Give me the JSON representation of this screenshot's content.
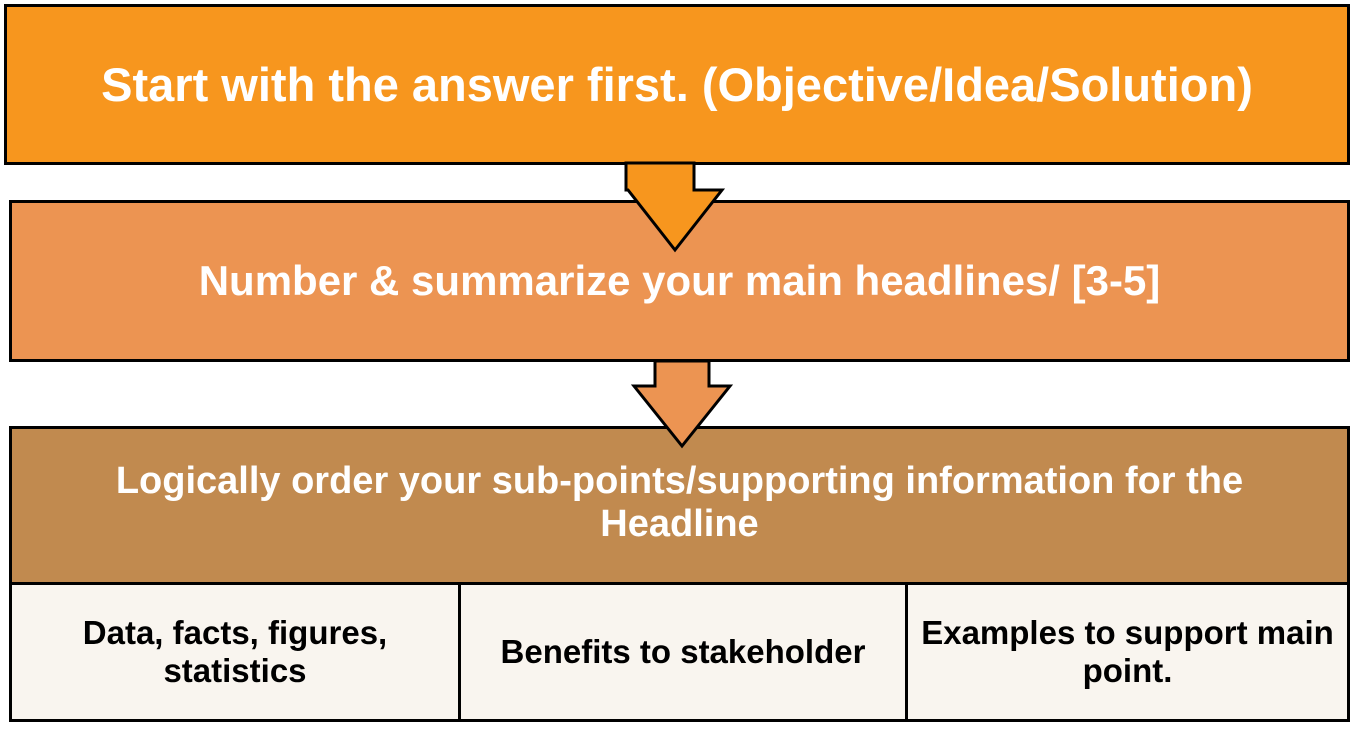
{
  "diagram": {
    "step1": {
      "label": "Start with the answer first. (Objective/Idea/Solution)"
    },
    "step2": {
      "label": "Number & summarize your main headlines/ [3-5]"
    },
    "step3": {
      "label": "Logically order your sub-points/supporting information for the Headline"
    },
    "supports": [
      {
        "label": "Data, facts, figures, statistics"
      },
      {
        "label": "Benefits to stakeholder"
      },
      {
        "label": "Examples to support main point."
      }
    ]
  },
  "colors": {
    "step1": "#f7961e",
    "step2": "#ec9452",
    "step3": "#c18a4f",
    "support": "#f9f5ef",
    "outline": "#000000"
  }
}
